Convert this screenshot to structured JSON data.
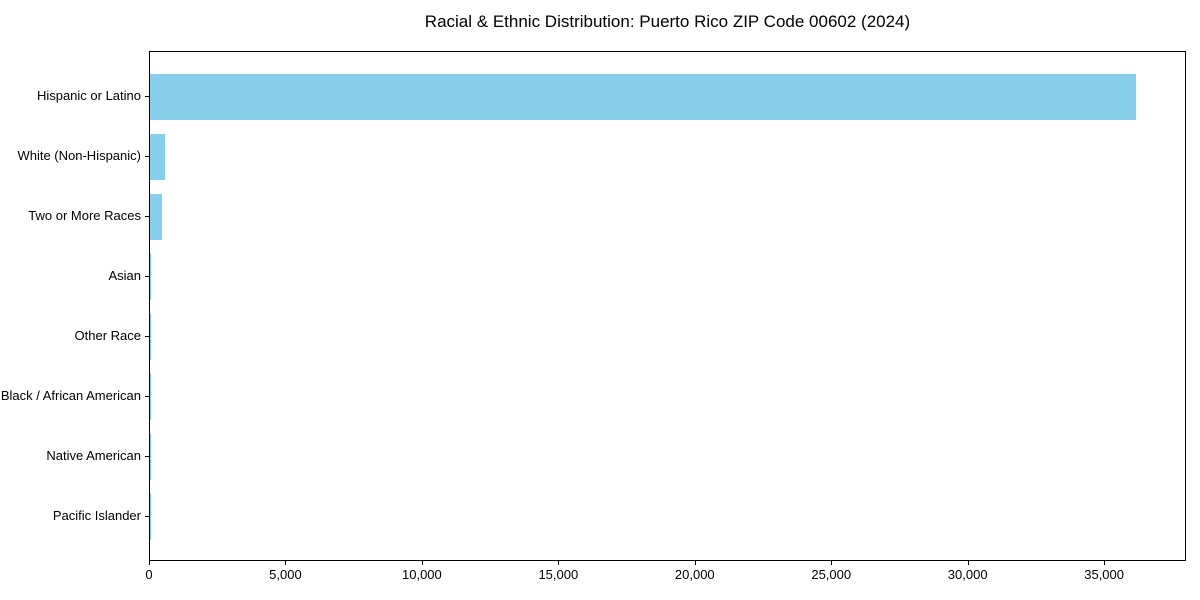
{
  "chart_data": {
    "type": "bar",
    "orientation": "horizontal",
    "title": "Racial & Ethnic Distribution: Puerto Rico ZIP Code 00602 (2024)",
    "categories": [
      "Hispanic or Latino",
      "White (Non-Hispanic)",
      "Two or More Races",
      "Asian",
      "Other Race",
      "Black / African American",
      "Native American",
      "Pacific Islander"
    ],
    "values": [
      36200,
      550,
      450,
      40,
      25,
      15,
      10,
      5
    ],
    "xlabel": "",
    "ylabel": "",
    "xlim": [
      0,
      38000
    ],
    "xticks": [
      0,
      5000,
      10000,
      15000,
      20000,
      25000,
      30000,
      35000
    ],
    "grid": false,
    "legend_position": "none",
    "sorted": "descending",
    "bar_color": "#87CEEB",
    "axis_color": "#000000",
    "text_color": "#000000",
    "background_color": "#FFFFFF"
  }
}
